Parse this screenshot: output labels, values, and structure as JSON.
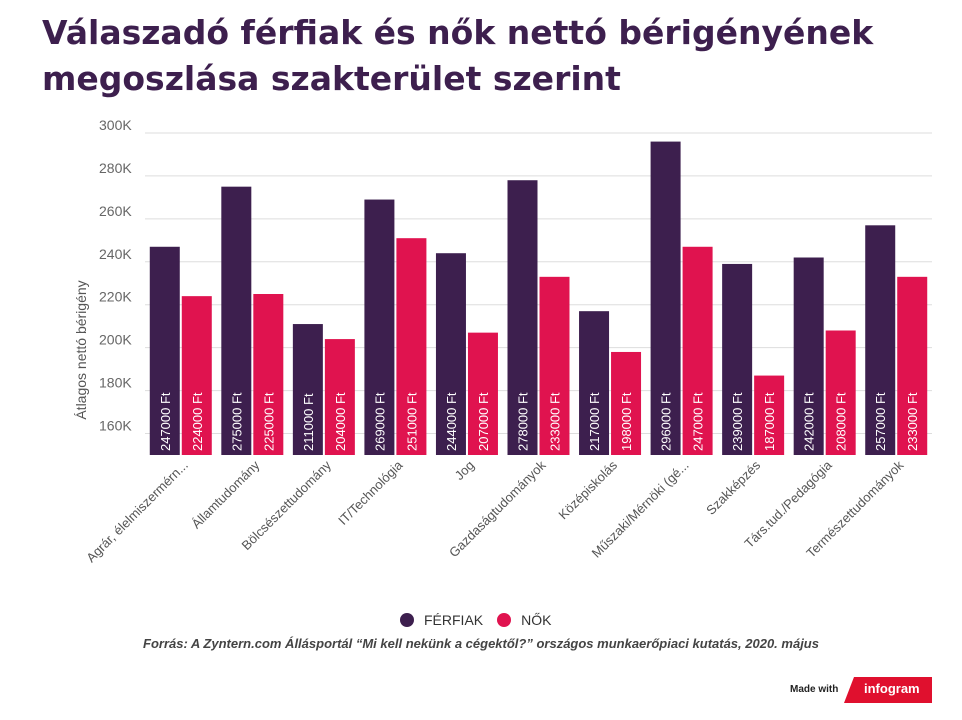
{
  "title_lines": [
    "Válaszadó férfiak és nők nettó bérigényének",
    "megoszlása szakterület szerint"
  ],
  "legend": [
    {
      "label": "FÉRFIAK",
      "color": "#3d1f4e"
    },
    {
      "label": "NŐK",
      "color": "#e0134f"
    }
  ],
  "source": "Forrás: A Zyntern.com Állásportál “Mi kell nekünk a cégektől?” országos munkaerőpiaci kutatás, 2020. május",
  "footer": {
    "made_with": "Made with",
    "brand": "infogram"
  },
  "chart_data": {
    "type": "bar",
    "title": "Válaszadó férfiak és nők nettó bérigényének megoszlása szakterület szerint",
    "ylabel": "Átlagos nettó bérigény",
    "xlabel": "",
    "ylim": [
      150000,
      300000
    ],
    "yticks": [
      160000,
      180000,
      200000,
      220000,
      240000,
      260000,
      280000,
      300000
    ],
    "ytick_labels": [
      "160K",
      "180K",
      "200K",
      "220K",
      "240K",
      "260K",
      "280K",
      "300K"
    ],
    "categories": [
      "Agrár, élelmiszermérn...",
      "Államtudomány",
      "Bölcsészettudomány",
      "IT/Technológia",
      "Jog",
      "Gazdaságtudományok",
      "Középiskolás",
      "Műszaki/Mérnöki (gé...",
      "Szakképzés",
      "Társ.tud./Pedagógia",
      "Természettudományok"
    ],
    "series": [
      {
        "name": "FÉRFIAK",
        "color": "#3d1f4e",
        "values": [
          247000,
          275000,
          211000,
          269000,
          244000,
          278000,
          217000,
          296000,
          239000,
          242000,
          257000
        ]
      },
      {
        "name": "NŐK",
        "color": "#e0134f",
        "values": [
          224000,
          225000,
          204000,
          251000,
          207000,
          233000,
          198000,
          247000,
          187000,
          208000,
          233000
        ]
      }
    ],
    "label_suffix": " Ft",
    "grid": true
  }
}
